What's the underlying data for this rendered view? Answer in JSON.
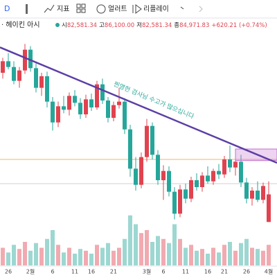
{
  "toolbar": {
    "interval": "D",
    "items": [
      "지표",
      "얼러트",
      "리플레이"
    ]
  },
  "legend": {
    "name": "· 헤이킨 아시",
    "open_label": "시",
    "open": "82,581.34",
    "high_label": "고",
    "high": "86,100.00",
    "low_label": "저",
    "low": "82,581.34",
    "close_label": "종",
    "close": "84,971.83",
    "change": "+620.21 (+0.74%)"
  },
  "chart_data": {
    "type": "candlestick",
    "annotation": "찐영헌 검사님 수고가 많으십니다",
    "ylim": [
      82000,
      100000
    ],
    "volume_lim": [
      0,
      100
    ],
    "up_color": "#e0434f",
    "down_color": "#26a69a",
    "x_labels": [
      "26",
      "2월",
      "6",
      "11",
      "16",
      "21",
      "3월",
      "6",
      "11",
      "16",
      "21",
      "26",
      "4월"
    ],
    "x_label_index": [
      1,
      5,
      9,
      13,
      16,
      20,
      26,
      29,
      33,
      37,
      40,
      44,
      48
    ],
    "candles": [
      [
        95500,
        96800,
        95000,
        96500
      ],
      [
        96500,
        97200,
        95800,
        96000
      ],
      [
        96000,
        96500,
        94500,
        94800
      ],
      [
        94800,
        96000,
        94200,
        95700
      ],
      [
        95700,
        98000,
        95400,
        97500
      ],
      [
        97500,
        97800,
        95600,
        95900
      ],
      [
        95900,
        96300,
        93800,
        94200
      ],
      [
        94200,
        95500,
        93500,
        95200
      ],
      [
        95200,
        95600,
        92500,
        93000
      ],
      [
        93000,
        93400,
        90500,
        91200
      ],
      [
        91200,
        93000,
        90800,
        92600
      ],
      [
        92600,
        93500,
        92000,
        92300
      ],
      [
        92300,
        93800,
        91800,
        93500
      ],
      [
        93500,
        94000,
        92600,
        92900
      ],
      [
        92900,
        93300,
        91500,
        91900
      ],
      [
        91900,
        93600,
        91600,
        93200
      ],
      [
        93200,
        93700,
        92200,
        92500
      ],
      [
        92500,
        94800,
        92300,
        94500
      ],
      [
        94500,
        95000,
        92800,
        93100
      ],
      [
        93100,
        93400,
        91200,
        91600
      ],
      [
        91600,
        93000,
        91300,
        92700
      ],
      [
        92700,
        94200,
        92400,
        93000
      ],
      [
        93000,
        93300,
        90200,
        90600
      ],
      [
        90600,
        91000,
        86500,
        87200
      ],
      [
        87200,
        88200,
        85300,
        85800
      ],
      [
        85800,
        88600,
        85500,
        88200
      ],
      [
        88200,
        91500,
        87800,
        90900
      ],
      [
        90900,
        91200,
        88000,
        88400
      ],
      [
        88400,
        88800,
        85800,
        86200
      ],
      [
        86200,
        87500,
        84500,
        87000
      ],
      [
        87000,
        87400,
        84800,
        85200
      ],
      [
        85200,
        85600,
        82800,
        83300
      ],
      [
        83300,
        85800,
        83000,
        85400
      ],
      [
        85400,
        85900,
        84200,
        84600
      ],
      [
        84600,
        86500,
        84300,
        86200
      ],
      [
        86200,
        86800,
        85300,
        85600
      ],
      [
        85600,
        86900,
        85200,
        86600
      ],
      [
        86600,
        87400,
        85900,
        86100
      ],
      [
        86100,
        87200,
        85800,
        87000
      ],
      [
        87000,
        87600,
        86300,
        86700
      ],
      [
        86700,
        88300,
        86400,
        88000
      ],
      [
        88000,
        89200,
        86900,
        87300
      ],
      [
        87300,
        88100,
        86600,
        87800
      ],
      [
        87800,
        88400,
        85600,
        86000
      ],
      [
        86000,
        86400,
        84200,
        84600
      ],
      [
        84600,
        85600,
        84000,
        85300
      ],
      [
        85300,
        86100,
        84300,
        84500
      ],
      [
        84500,
        86000,
        84200,
        85700
      ],
      [
        82581.34,
        86100,
        82581.34,
        84971.83
      ]
    ],
    "volumes": [
      30,
      22,
      35,
      28,
      40,
      25,
      38,
      30,
      45,
      60,
      35,
      22,
      30,
      20,
      28,
      25,
      20,
      35,
      30,
      38,
      25,
      30,
      45,
      85,
      70,
      55,
      60,
      40,
      50,
      45,
      38,
      70,
      45,
      30,
      35,
      25,
      28,
      20,
      30,
      22,
      35,
      40,
      25,
      38,
      45,
      30,
      28,
      25,
      35
    ],
    "trendline": {
      "start": [
        -0.5,
        97700
      ],
      "end": [
        49.5,
        87700
      ],
      "color": "#5b3fa6"
    },
    "hlines": [
      {
        "value": 88000,
        "color": "#f6b26b"
      },
      {
        "value": 85900,
        "color": "#d0d0d0"
      }
    ],
    "box": {
      "start": 42,
      "end": 49.5,
      "low": 87900,
      "high": 88900,
      "color": "#c36fd1"
    }
  }
}
